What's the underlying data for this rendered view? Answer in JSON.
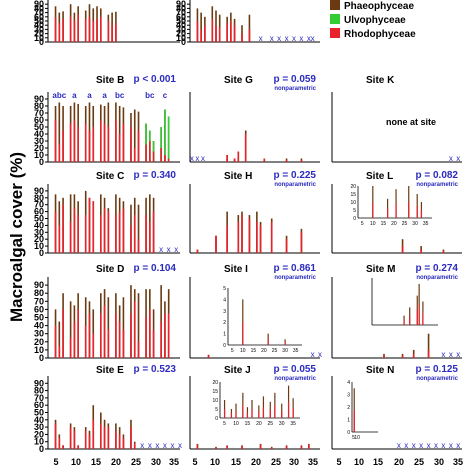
{
  "colors": {
    "phaeophyceae": "#6b3a10",
    "ulvophyceae": "#33cc33",
    "rhodophyceae": "#e8212a",
    "p_text": "#2b2bbf",
    "x_marker": "#2b2bbf",
    "axis": "#000000"
  },
  "figure": {
    "y_axis_label": "Macroalgal cover (%)",
    "x_tick_labels": [
      "5",
      "10",
      "15",
      "20",
      "25",
      "30",
      "35"
    ]
  },
  "legend": {
    "items": [
      {
        "label": "Phaeophyceae",
        "color": "#6b3a10"
      },
      {
        "label": "Ulvophyceae",
        "color": "#33cc33"
      },
      {
        "label": "Rhodophyceae",
        "color": "#e8212a"
      }
    ]
  },
  "chart_data": [
    {
      "type": "bar",
      "site": "",
      "p_value": "",
      "note": "",
      "show_y_ticks": true,
      "y_ticks": [
        "0",
        "10",
        "20",
        "30",
        "40",
        "50",
        "60",
        "70",
        "80",
        "90"
      ],
      "xlim": [
        3,
        38
      ],
      "ylim": [
        0,
        100
      ],
      "x": [
        5,
        6,
        7,
        9,
        10,
        11,
        13,
        14,
        15,
        16,
        17,
        19,
        20,
        21
      ],
      "brown": [
        85,
        70,
        73,
        90,
        70,
        85,
        75,
        90,
        80,
        85,
        80,
        65,
        70,
        72
      ],
      "green": [
        0,
        0,
        0,
        0,
        0,
        0,
        0,
        0,
        0,
        0,
        0,
        0,
        0,
        0
      ],
      "red": [
        60,
        45,
        55,
        60,
        50,
        65,
        55,
        60,
        50,
        55,
        60,
        50,
        40,
        45
      ],
      "absent_x": [],
      "group_labels": []
    },
    {
      "type": "bar",
      "site": "",
      "p_value": "",
      "note": "",
      "show_y_ticks": true,
      "y_ticks": [
        "0",
        "10",
        "20",
        "30",
        "40",
        "50",
        "60",
        "70",
        "80",
        "90"
      ],
      "xlim": [
        3,
        38
      ],
      "ylim": [
        0,
        100
      ],
      "x": [
        5,
        6,
        7,
        9,
        10,
        11,
        13,
        14,
        15,
        17,
        19
      ],
      "brown": [
        80,
        70,
        60,
        85,
        75,
        65,
        60,
        70,
        55,
        40,
        65
      ],
      "green": [
        0,
        0,
        0,
        0,
        0,
        0,
        0,
        0,
        0,
        0,
        0
      ],
      "red": [
        50,
        30,
        40,
        55,
        40,
        35,
        45,
        50,
        40,
        20,
        30
      ],
      "absent_x": [
        22,
        25,
        27,
        29,
        31,
        33,
        35,
        36
      ],
      "group_labels": []
    },
    {
      "type": "bar",
      "site": "Site B",
      "p_value": "p < 0.001",
      "note": "",
      "show_y_ticks": true,
      "y_ticks": [
        "0",
        "10",
        "20",
        "30",
        "40",
        "50",
        "60",
        "70",
        "80",
        "90"
      ],
      "xlim": [
        3,
        38
      ],
      "ylim": [
        0,
        100
      ],
      "x": [
        5,
        6,
        7,
        9,
        10,
        11,
        13,
        14,
        15,
        17,
        18,
        19,
        21,
        22,
        23,
        25,
        26,
        27,
        29,
        30,
        31,
        33,
        34,
        35
      ],
      "brown": [
        80,
        85,
        80,
        80,
        85,
        83,
        80,
        85,
        80,
        82,
        80,
        85,
        85,
        80,
        78,
        70,
        75,
        72,
        55,
        45,
        30,
        50,
        75,
        65
      ],
      "green": [
        0,
        0,
        0,
        0,
        0,
        0,
        0,
        0,
        0,
        0,
        0,
        0,
        0,
        0,
        0,
        0,
        0,
        0,
        55,
        45,
        30,
        50,
        75,
        65
      ],
      "red": [
        60,
        25,
        45,
        55,
        60,
        50,
        55,
        45,
        50,
        60,
        55,
        50,
        60,
        40,
        55,
        50,
        20,
        45,
        25,
        30,
        15,
        20,
        10,
        5
      ],
      "absent_x": [],
      "group_labels": [
        {
          "text": "abc",
          "x": 6
        },
        {
          "text": "a",
          "x": 10
        },
        {
          "text": "a",
          "x": 14
        },
        {
          "text": "a",
          "x": 18
        },
        {
          "text": "bc",
          "x": 22
        },
        {
          "text": "bc",
          "x": 30
        },
        {
          "text": "c",
          "x": 34
        }
      ]
    },
    {
      "type": "bar",
      "site": "Site G",
      "p_value": "p = 0.059",
      "note": "nonparametric",
      "show_y_ticks": true,
      "y_ticks": [],
      "xlim": [
        3,
        38
      ],
      "ylim": [
        0,
        100
      ],
      "x": [
        13,
        15,
        16,
        18,
        23,
        29,
        33
      ],
      "brown": [
        10,
        5,
        15,
        45,
        5,
        5,
        5
      ],
      "green": [
        0,
        0,
        0,
        0,
        0,
        0,
        0
      ],
      "red": [
        10,
        5,
        15,
        40,
        5,
        3,
        3
      ],
      "absent_x": [
        3.5,
        5,
        6.5
      ],
      "group_labels": []
    },
    {
      "type": "bar",
      "site": "Site K",
      "p_value": "",
      "note": "none at site",
      "show_y_ticks": true,
      "y_ticks": [],
      "xlim": [
        3,
        38
      ],
      "ylim": [
        0,
        100
      ],
      "x": [],
      "brown": [],
      "green": [],
      "red": [],
      "absent_x": [
        35,
        37
      ],
      "group_labels": []
    },
    {
      "type": "bar",
      "site": "Site C",
      "p_value": "p = 0.340",
      "note": "",
      "show_y_ticks": true,
      "y_ticks": [
        "0",
        "10",
        "20",
        "30",
        "40",
        "50",
        "60",
        "70",
        "80",
        "90"
      ],
      "xlim": [
        3,
        38
      ],
      "ylim": [
        0,
        100
      ],
      "x": [
        5,
        6,
        7,
        9,
        10,
        11,
        13,
        14,
        15,
        17,
        18,
        19,
        21,
        22,
        23,
        25,
        26,
        27,
        29,
        30,
        31
      ],
      "brown": [
        85,
        75,
        80,
        85,
        85,
        75,
        90,
        80,
        75,
        85,
        80,
        65,
        85,
        80,
        75,
        70,
        80,
        70,
        80,
        85,
        80
      ],
      "green": [
        0,
        0,
        0,
        0,
        0,
        0,
        0,
        0,
        0,
        0,
        0,
        0,
        0,
        0,
        0,
        0,
        0,
        0,
        0,
        0,
        0
      ],
      "red": [
        60,
        40,
        70,
        45,
        65,
        55,
        55,
        80,
        75,
        55,
        65,
        60,
        55,
        60,
        65,
        40,
        55,
        20,
        55,
        45,
        60
      ],
      "absent_x": [
        33,
        35,
        37
      ],
      "group_labels": []
    },
    {
      "type": "bar",
      "site": "Site H",
      "p_value": "p = 0.225",
      "note": "nonparametric",
      "show_y_ticks": false,
      "y_ticks": [],
      "xlim": [
        3,
        38
      ],
      "ylim": [
        0,
        100
      ],
      "x": [
        5,
        10,
        13,
        16,
        17,
        19,
        21,
        22,
        25,
        29,
        33
      ],
      "brown": [
        5,
        25,
        60,
        55,
        60,
        55,
        60,
        45,
        50,
        25,
        35
      ],
      "green": [
        0,
        0,
        0,
        0,
        0,
        0,
        0,
        0,
        0,
        0,
        5
      ],
      "red": [
        5,
        25,
        40,
        45,
        55,
        50,
        45,
        40,
        45,
        20,
        30
      ],
      "absent_x": [],
      "group_labels": []
    },
    {
      "type": "bar",
      "site": "Site L",
      "p_value": "p = 0.082",
      "note": "nonparametric",
      "show_y_ticks": false,
      "y_ticks": [],
      "xlim": [
        3,
        38
      ],
      "ylim": [
        0,
        100
      ],
      "x": [
        22,
        27,
        33
      ],
      "brown": [
        20,
        10,
        5
      ],
      "green": [
        0,
        0,
        0
      ],
      "red": [
        10,
        5,
        3
      ],
      "absent_x": [],
      "inset": {
        "ylim": [
          0,
          20
        ],
        "y_ticks": [
          "0",
          "5",
          "10",
          "15",
          "20"
        ],
        "x_ticks": [
          "5",
          "10",
          "15",
          "20",
          "25",
          "30",
          "35"
        ],
        "x": [
          10,
          17,
          21,
          27,
          31,
          33
        ],
        "values": [
          20,
          12,
          18,
          20,
          15,
          10
        ]
      },
      "group_labels": []
    },
    {
      "type": "bar",
      "site": "Site D",
      "p_value": "p = 0.104",
      "note": "",
      "show_y_ticks": true,
      "y_ticks": [
        "0",
        "10",
        "20",
        "30",
        "40",
        "50",
        "60",
        "70",
        "80",
        "90"
      ],
      "xlim": [
        3,
        38
      ],
      "ylim": [
        0,
        100
      ],
      "x": [
        5,
        6,
        7,
        9,
        10,
        11,
        13,
        14,
        15,
        17,
        18,
        19,
        21,
        22,
        23,
        25,
        26,
        27,
        29,
        30,
        31,
        33,
        34,
        35
      ],
      "brown": [
        60,
        45,
        80,
        70,
        65,
        80,
        75,
        70,
        60,
        80,
        85,
        75,
        80,
        65,
        75,
        90,
        85,
        80,
        85,
        85,
        60,
        90,
        70,
        85
      ],
      "green": [
        0,
        0,
        0,
        0,
        0,
        0,
        0,
        0,
        0,
        0,
        0,
        0,
        0,
        0,
        0,
        0,
        0,
        0,
        0,
        0,
        0,
        0,
        0,
        0
      ],
      "red": [
        40,
        15,
        60,
        25,
        45,
        60,
        40,
        55,
        30,
        55,
        65,
        35,
        55,
        45,
        35,
        55,
        70,
        20,
        50,
        60,
        35,
        45,
        55,
        55
      ],
      "absent_x": [],
      "group_labels": []
    },
    {
      "type": "bar",
      "site": "Site I",
      "p_value": "p = 0.861",
      "note": "nonparametric",
      "show_y_ticks": false,
      "y_ticks": [],
      "xlim": [
        3,
        38
      ],
      "ylim": [
        0,
        100
      ],
      "x": [
        8
      ],
      "brown": [
        4
      ],
      "green": [
        0
      ],
      "red": [
        3
      ],
      "absent_x": [
        36,
        38
      ],
      "inset": {
        "ylim": [
          0,
          5
        ],
        "y_ticks": [
          "0",
          "1",
          "2",
          "3",
          "4",
          "5"
        ],
        "x_ticks": [
          "5",
          "10",
          "15",
          "20",
          "25",
          "30",
          "35"
        ],
        "x": [
          10,
          22,
          30
        ],
        "values": [
          4,
          1,
          0.5
        ]
      },
      "group_labels": []
    },
    {
      "type": "bar",
      "site": "Site M",
      "p_value": "p = 0.274",
      "note": "nonparametric",
      "show_y_ticks": false,
      "y_ticks": [],
      "xlim": [
        3,
        38
      ],
      "ylim": [
        0,
        100
      ],
      "x": [
        17,
        22,
        25,
        29
      ],
      "brown": [
        5,
        5,
        10,
        30
      ],
      "green": [
        0,
        0,
        0,
        0
      ],
      "red": [
        3,
        3,
        5,
        10
      ],
      "absent_x": [
        33,
        35,
        37
      ],
      "inset": {
        "ylim": [
          0,
          40
        ],
        "y_ticks": [],
        "x_ticks": [],
        "x": [
          20,
          23,
          27,
          28,
          30
        ],
        "values": [
          8,
          15,
          25,
          35,
          20
        ]
      },
      "group_labels": []
    },
    {
      "type": "bar",
      "site": "Site E",
      "p_value": "p = 0.523",
      "note": "",
      "show_y_ticks": true,
      "y_ticks": [
        "0",
        "10",
        "20",
        "30",
        "40",
        "50",
        "60",
        "70",
        "80",
        "90"
      ],
      "xlim": [
        3,
        38
      ],
      "ylim": [
        0,
        100
      ],
      "x": [
        5,
        6,
        7,
        9,
        10,
        11,
        13,
        14,
        15,
        17,
        18,
        19,
        21,
        22,
        23,
        25,
        26
      ],
      "brown": [
        40,
        20,
        5,
        35,
        30,
        5,
        30,
        25,
        60,
        50,
        40,
        35,
        35,
        30,
        20,
        40,
        10
      ],
      "green": [
        0,
        0,
        0,
        0,
        0,
        0,
        0,
        0,
        0,
        0,
        0,
        0,
        0,
        0,
        0,
        0,
        0
      ],
      "red": [
        35,
        15,
        5,
        30,
        25,
        5,
        25,
        20,
        40,
        35,
        30,
        30,
        25,
        20,
        15,
        30,
        8
      ],
      "absent_x": [
        28,
        30,
        32,
        34,
        36,
        38
      ],
      "group_labels": []
    },
    {
      "type": "bar",
      "site": "Site J",
      "p_value": "p = 0.055",
      "note": "nonparametric",
      "show_y_ticks": false,
      "y_ticks": [],
      "xlim": [
        3,
        38
      ],
      "ylim": [
        0,
        100
      ],
      "x": [
        5,
        10,
        13,
        17,
        22,
        25,
        29,
        33,
        35
      ],
      "brown": [
        7,
        3,
        5,
        5,
        7,
        3,
        5,
        5,
        7
      ],
      "green": [
        0,
        0,
        0,
        0,
        0,
        0,
        0,
        0,
        0
      ],
      "red": [
        6,
        2,
        4,
        4,
        6,
        2,
        4,
        4,
        6
      ],
      "absent_x": [],
      "inset": {
        "ylim": [
          0,
          20
        ],
        "y_ticks": [
          "0",
          "5",
          "10",
          "15",
          "20"
        ],
        "x_ticks": [
          "5",
          "10",
          "15",
          "20",
          "25",
          "30",
          "35"
        ],
        "x": [
          5,
          8,
          10,
          13,
          15,
          17,
          20,
          22,
          25,
          27,
          30,
          33,
          35
        ],
        "values": [
          10,
          5,
          8,
          14,
          6,
          10,
          7,
          12,
          9,
          14,
          8,
          18,
          11
        ]
      },
      "group_labels": []
    },
    {
      "type": "bar",
      "site": "Site N",
      "p_value": "p = 0.125",
      "note": "nonparametric",
      "show_y_ticks": false,
      "y_ticks": [],
      "xlim": [
        3,
        38
      ],
      "ylim": [
        0,
        100
      ],
      "x": [],
      "brown": [],
      "green": [],
      "red": [],
      "absent_x": [
        21,
        23,
        25,
        27,
        29,
        31,
        33,
        35,
        37
      ],
      "inset": {
        "ylim": [
          0,
          4
        ],
        "y_ticks": [
          "0",
          "1",
          "2",
          "3",
          "4"
        ],
        "x_ticks": [
          "5",
          "10"
        ],
        "x": [
          6
        ],
        "values": [
          3.5
        ]
      },
      "group_labels": []
    }
  ]
}
